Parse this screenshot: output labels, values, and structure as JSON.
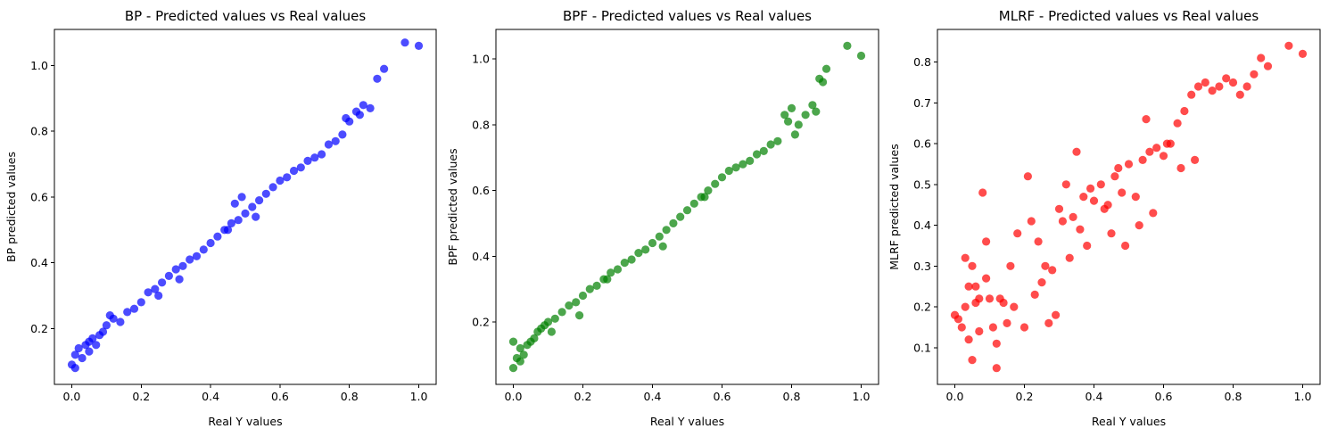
{
  "chart_data": [
    {
      "type": "scatter",
      "title": "BP - Predicted values vs Real values",
      "xlabel": "Real Y values",
      "ylabel": "BP predicted values",
      "xlim": [
        -0.05,
        1.05
      ],
      "ylim": [
        0.03,
        1.11
      ],
      "xticks": [
        "0.0",
        "0.2",
        "0.4",
        "0.6",
        "0.8",
        "1.0"
      ],
      "yticks": [
        "0.2",
        "0.4",
        "0.6",
        "0.8",
        "1.0"
      ],
      "color": "#0000ff",
      "grid": false,
      "series": [
        {
          "x": [
            0.0,
            0.01,
            0.02,
            0.03,
            0.04,
            0.05,
            0.06,
            0.07,
            0.08,
            0.09,
            0.1,
            0.12,
            0.14,
            0.16,
            0.18,
            0.2,
            0.22,
            0.24,
            0.26,
            0.28,
            0.3,
            0.32,
            0.34,
            0.36,
            0.38,
            0.4,
            0.42,
            0.44,
            0.46,
            0.48,
            0.5,
            0.52,
            0.54,
            0.56,
            0.58,
            0.6,
            0.62,
            0.64,
            0.66,
            0.68,
            0.7,
            0.72,
            0.74,
            0.76,
            0.78,
            0.8,
            0.82,
            0.84,
            0.86,
            0.88,
            0.9,
            0.96,
            1.0,
            0.01,
            0.05,
            0.11,
            0.25,
            0.31,
            0.45,
            0.47,
            0.53,
            0.49,
            0.79,
            0.83
          ],
          "y": [
            0.09,
            0.12,
            0.14,
            0.11,
            0.15,
            0.16,
            0.17,
            0.15,
            0.18,
            0.19,
            0.21,
            0.23,
            0.22,
            0.25,
            0.26,
            0.28,
            0.31,
            0.32,
            0.34,
            0.36,
            0.38,
            0.39,
            0.41,
            0.42,
            0.44,
            0.46,
            0.48,
            0.5,
            0.52,
            0.53,
            0.55,
            0.57,
            0.59,
            0.61,
            0.63,
            0.65,
            0.66,
            0.68,
            0.69,
            0.71,
            0.72,
            0.73,
            0.76,
            0.77,
            0.79,
            0.83,
            0.86,
            0.88,
            0.87,
            0.96,
            0.99,
            1.07,
            1.06,
            0.08,
            0.13,
            0.24,
            0.3,
            0.35,
            0.5,
            0.58,
            0.54,
            0.6,
            0.84,
            0.85
          ]
        }
      ]
    },
    {
      "type": "scatter",
      "title": "BPF - Predicted values vs Real values",
      "xlabel": "Real Y values",
      "ylabel": "BPF predicted values",
      "xlim": [
        -0.05,
        1.05
      ],
      "ylim": [
        0.01,
        1.09
      ],
      "xticks": [
        "0.0",
        "0.2",
        "0.4",
        "0.6",
        "0.8",
        "1.0"
      ],
      "yticks": [
        "0.2",
        "0.4",
        "0.6",
        "0.8",
        "1.0"
      ],
      "color": "#008000",
      "grid": false,
      "series": [
        {
          "x": [
            0.0,
            0.01,
            0.02,
            0.03,
            0.04,
            0.05,
            0.06,
            0.07,
            0.08,
            0.09,
            0.1,
            0.12,
            0.14,
            0.16,
            0.18,
            0.2,
            0.22,
            0.24,
            0.26,
            0.28,
            0.3,
            0.32,
            0.34,
            0.36,
            0.38,
            0.4,
            0.42,
            0.44,
            0.46,
            0.48,
            0.5,
            0.52,
            0.54,
            0.56,
            0.58,
            0.6,
            0.62,
            0.64,
            0.66,
            0.68,
            0.7,
            0.72,
            0.74,
            0.76,
            0.78,
            0.8,
            0.82,
            0.84,
            0.86,
            0.88,
            0.9,
            0.96,
            1.0,
            0.0,
            0.02,
            0.11,
            0.19,
            0.27,
            0.43,
            0.55,
            0.79,
            0.81,
            0.87,
            0.89
          ],
          "y": [
            0.06,
            0.09,
            0.12,
            0.1,
            0.13,
            0.14,
            0.15,
            0.17,
            0.18,
            0.19,
            0.2,
            0.21,
            0.23,
            0.25,
            0.26,
            0.28,
            0.3,
            0.31,
            0.33,
            0.35,
            0.36,
            0.38,
            0.39,
            0.41,
            0.42,
            0.44,
            0.46,
            0.48,
            0.5,
            0.52,
            0.54,
            0.56,
            0.58,
            0.6,
            0.62,
            0.64,
            0.66,
            0.67,
            0.68,
            0.69,
            0.71,
            0.72,
            0.74,
            0.75,
            0.83,
            0.85,
            0.8,
            0.83,
            0.86,
            0.94,
            0.97,
            1.04,
            1.01,
            0.14,
            0.08,
            0.17,
            0.22,
            0.33,
            0.43,
            0.58,
            0.81,
            0.77,
            0.84,
            0.93
          ]
        }
      ]
    },
    {
      "type": "scatter",
      "title": "MLRF - Predicted values vs Real values",
      "xlabel": "Real Y values",
      "ylabel": "MLRF predicted values",
      "xlim": [
        -0.05,
        1.05
      ],
      "ylim": [
        0.01,
        0.88
      ],
      "xticks": [
        "0.0",
        "0.2",
        "0.4",
        "0.6",
        "0.8",
        "1.0"
      ],
      "yticks": [
        "0.1",
        "0.2",
        "0.3",
        "0.4",
        "0.5",
        "0.6",
        "0.7",
        "0.8"
      ],
      "color": "#ff0000",
      "grid": false,
      "series": [
        {
          "x": [
            0.0,
            0.01,
            0.02,
            0.03,
            0.04,
            0.05,
            0.06,
            0.07,
            0.08,
            0.09,
            0.1,
            0.11,
            0.12,
            0.14,
            0.16,
            0.18,
            0.2,
            0.22,
            0.24,
            0.26,
            0.28,
            0.3,
            0.32,
            0.34,
            0.36,
            0.38,
            0.4,
            0.42,
            0.44,
            0.46,
            0.48,
            0.5,
            0.52,
            0.54,
            0.56,
            0.58,
            0.6,
            0.62,
            0.64,
            0.66,
            0.68,
            0.7,
            0.72,
            0.74,
            0.76,
            0.78,
            0.8,
            0.82,
            0.84,
            0.86,
            0.88,
            0.9,
            0.96,
            1.0,
            0.03,
            0.05,
            0.07,
            0.06,
            0.12,
            0.13,
            0.21,
            0.27,
            0.29,
            0.33,
            0.35,
            0.43,
            0.47,
            0.49,
            0.53,
            0.57,
            0.61,
            0.65,
            0.25,
            0.31,
            0.15,
            0.09,
            0.04,
            0.39,
            0.45,
            0.55,
            0.69,
            0.23,
            0.17,
            0.37
          ],
          "y": [
            0.18,
            0.17,
            0.15,
            0.2,
            0.12,
            0.07,
            0.25,
            0.22,
            0.48,
            0.36,
            0.22,
            0.15,
            0.05,
            0.21,
            0.3,
            0.38,
            0.15,
            0.41,
            0.36,
            0.3,
            0.29,
            0.44,
            0.5,
            0.42,
            0.39,
            0.35,
            0.46,
            0.5,
            0.45,
            0.52,
            0.48,
            0.55,
            0.47,
            0.56,
            0.58,
            0.59,
            0.57,
            0.6,
            0.65,
            0.68,
            0.72,
            0.74,
            0.75,
            0.73,
            0.74,
            0.76,
            0.75,
            0.72,
            0.74,
            0.77,
            0.81,
            0.79,
            0.84,
            0.82,
            0.32,
            0.3,
            0.14,
            0.21,
            0.11,
            0.22,
            0.52,
            0.16,
            0.18,
            0.32,
            0.58,
            0.44,
            0.54,
            0.35,
            0.4,
            0.43,
            0.6,
            0.54,
            0.26,
            0.41,
            0.16,
            0.27,
            0.25,
            0.49,
            0.38,
            0.66,
            0.56,
            0.23,
            0.2,
            0.47
          ]
        }
      ]
    }
  ]
}
